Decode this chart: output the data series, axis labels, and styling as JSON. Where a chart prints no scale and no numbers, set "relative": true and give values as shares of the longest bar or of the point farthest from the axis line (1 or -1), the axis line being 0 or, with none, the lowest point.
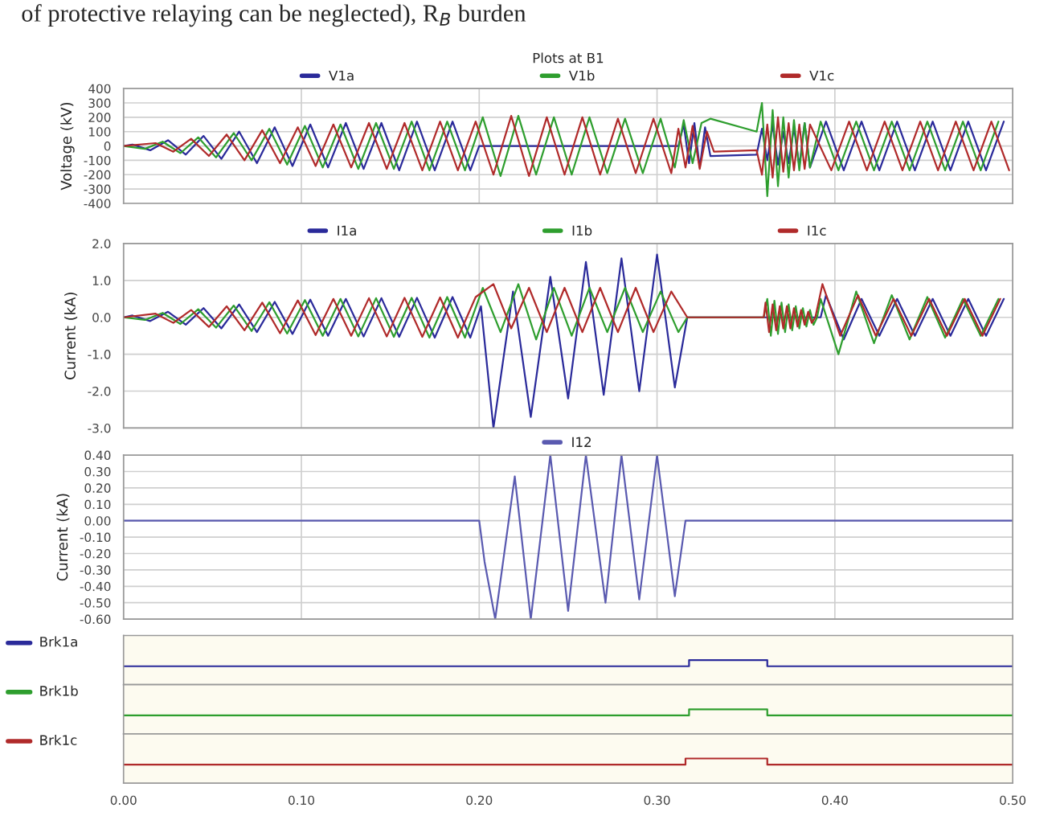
{
  "chart_data": [
    {
      "type": "line",
      "title": "Plots at B1",
      "ylabel": "Voltage (kV)",
      "annotations": [
        "of protective relaying can be neglected), R$_{B}$ burden"
      ],
      "xlim": [
        0,
        0.5
      ],
      "xticks": [
        {
          "value": 0,
          "label": null
        },
        {
          "value": 0.1,
          "label": null
        },
        {
          "value": 0.2,
          "label": null
        },
        {
          "value": 0.3,
          "label": null
        },
        {
          "value": 0.4,
          "label": null
        },
        {
          "value": 0.5,
          "label": null
        }
      ],
      "ylim": [
        -400,
        400
      ],
      "yticks": [
        -400,
        -300,
        -200,
        -100,
        0,
        100,
        200,
        300,
        400
      ],
      "tick_labels": "y",
      "grid": true,
      "legend": "top",
      "series": [
        {
          "name": "V1a",
          "color": "#2a2a9a",
          "x": [
            0,
            0.005,
            0.015,
            0.025,
            0.035,
            0.045,
            0.055,
            0.065,
            0.075,
            0.085,
            0.095,
            0.105,
            0.115,
            0.125,
            0.135,
            0.145,
            0.155,
            0.165,
            0.175,
            0.185,
            0.195,
            0.2,
            0.312,
            0.315,
            0.318,
            0.321,
            0.324,
            0.327,
            0.33,
            0.356,
            0.359,
            0.362,
            0.365,
            0.368,
            0.371,
            0.374,
            0.377,
            0.38,
            0.383,
            0.386,
            0.395,
            0.405,
            0.415,
            0.425,
            0.435,
            0.445,
            0.455,
            0.465,
            0.475,
            0.485,
            0.495
          ],
          "values": [
            0,
            10,
            -30,
            40,
            -60,
            70,
            -90,
            100,
            -120,
            130,
            -140,
            150,
            -150,
            160,
            -160,
            160,
            -170,
            170,
            -170,
            170,
            -170,
            0,
            0,
            150,
            -120,
            160,
            -150,
            130,
            -70,
            -60,
            120,
            -100,
            150,
            -130,
            100,
            -120,
            130,
            -140,
            160,
            -150,
            170,
            -170,
            170,
            -170,
            170,
            -170,
            170,
            -170,
            170,
            -170,
            170
          ]
        },
        {
          "name": "V1b",
          "color": "#2e9e2e",
          "x": [
            0,
            0.012,
            0.022,
            0.032,
            0.042,
            0.052,
            0.062,
            0.072,
            0.082,
            0.092,
            0.102,
            0.112,
            0.122,
            0.132,
            0.142,
            0.152,
            0.162,
            0.172,
            0.182,
            0.192,
            0.202,
            0.212,
            0.222,
            0.232,
            0.242,
            0.252,
            0.262,
            0.272,
            0.282,
            0.292,
            0.302,
            0.31,
            0.315,
            0.32,
            0.325,
            0.33,
            0.356,
            0.359,
            0.362,
            0.365,
            0.368,
            0.371,
            0.374,
            0.377,
            0.38,
            0.383,
            0.386,
            0.392,
            0.402,
            0.412,
            0.422,
            0.432,
            0.442,
            0.452,
            0.462,
            0.472,
            0.482,
            0.492
          ],
          "values": [
            0,
            -20,
            30,
            -50,
            60,
            -80,
            90,
            -100,
            120,
            -130,
            140,
            -150,
            150,
            -160,
            160,
            -160,
            170,
            -170,
            170,
            -170,
            200,
            -210,
            210,
            -200,
            200,
            -200,
            200,
            -190,
            190,
            -190,
            190,
            -150,
            180,
            -120,
            160,
            190,
            100,
            300,
            -350,
            250,
            -280,
            200,
            -220,
            180,
            -170,
            160,
            -150,
            170,
            -170,
            170,
            -170,
            170,
            -170,
            170,
            -170,
            170,
            -170,
            170
          ]
        },
        {
          "name": "V1c",
          "color": "#b02a2a",
          "x": [
            0,
            0.018,
            0.028,
            0.038,
            0.048,
            0.058,
            0.068,
            0.078,
            0.088,
            0.098,
            0.108,
            0.118,
            0.128,
            0.138,
            0.148,
            0.158,
            0.168,
            0.178,
            0.188,
            0.198,
            0.208,
            0.218,
            0.228,
            0.238,
            0.248,
            0.258,
            0.268,
            0.278,
            0.288,
            0.298,
            0.308,
            0.312,
            0.316,
            0.32,
            0.324,
            0.328,
            0.332,
            0.356,
            0.359,
            0.362,
            0.365,
            0.368,
            0.371,
            0.374,
            0.377,
            0.38,
            0.383,
            0.386,
            0.398,
            0.408,
            0.418,
            0.428,
            0.438,
            0.448,
            0.458,
            0.468,
            0.478,
            0.488,
            0.498
          ],
          "values": [
            0,
            20,
            -40,
            50,
            -70,
            80,
            -100,
            110,
            -120,
            130,
            -140,
            150,
            -150,
            160,
            -160,
            160,
            -170,
            170,
            -170,
            170,
            -200,
            210,
            -210,
            200,
            -200,
            200,
            -200,
            190,
            -190,
            190,
            -190,
            120,
            -150,
            140,
            -160,
            100,
            -40,
            -30,
            -200,
            150,
            -220,
            200,
            -180,
            160,
            -170,
            150,
            -160,
            150,
            -170,
            170,
            -170,
            170,
            -170,
            170,
            -170,
            170,
            -170,
            170,
            -170
          ]
        }
      ]
    },
    {
      "type": "line",
      "ylabel": "Current (kA)",
      "xlim": [
        0,
        0.5
      ],
      "xticks": [
        {
          "value": 0,
          "label": null
        },
        {
          "value": 0.1,
          "label": null
        },
        {
          "value": 0.2,
          "label": null
        },
        {
          "value": 0.3,
          "label": null
        },
        {
          "value": 0.4,
          "label": null
        },
        {
          "value": 0.5,
          "label": null
        }
      ],
      "ylim": [
        -3,
        2
      ],
      "yticks": [
        {
          "value": -3,
          "label": "-3.0"
        },
        {
          "value": -2,
          "label": "-2.0"
        },
        {
          "value": -1,
          "label": "-1.0"
        },
        {
          "value": 0,
          "label": "0.0"
        },
        {
          "value": 1,
          "label": "1.0"
        },
        {
          "value": 2,
          "label": "2.0"
        }
      ],
      "tick_labels": "y",
      "grid": true,
      "legend": "top",
      "series": [
        {
          "name": "I1a",
          "color": "#2a2a9a",
          "x": [
            0,
            0.005,
            0.015,
            0.025,
            0.035,
            0.045,
            0.055,
            0.065,
            0.075,
            0.085,
            0.095,
            0.105,
            0.115,
            0.125,
            0.135,
            0.145,
            0.155,
            0.165,
            0.175,
            0.185,
            0.195,
            0.201,
            0.208,
            0.219,
            0.229,
            0.24,
            0.25,
            0.26,
            0.27,
            0.28,
            0.29,
            0.3,
            0.31,
            0.317,
            0.392,
            0.395,
            0.405,
            0.415,
            0.425,
            0.435,
            0.445,
            0.455,
            0.465,
            0.475,
            0.485,
            0.495
          ],
          "values": [
            0,
            0.05,
            -0.1,
            0.15,
            -0.2,
            0.25,
            -0.3,
            0.35,
            -0.4,
            0.42,
            -0.45,
            0.48,
            -0.5,
            0.5,
            -0.52,
            0.52,
            -0.53,
            0.53,
            -0.55,
            0.55,
            -0.55,
            0.3,
            -3.0,
            0.7,
            -2.7,
            1.1,
            -2.2,
            1.5,
            -2.1,
            1.6,
            -2.0,
            1.7,
            -1.9,
            0,
            0,
            0.6,
            -0.6,
            0.5,
            -0.5,
            0.5,
            -0.5,
            0.5,
            -0.5,
            0.5,
            -0.5,
            0.5
          ]
        },
        {
          "name": "I1b",
          "color": "#2e9e2e",
          "x": [
            0,
            0.012,
            0.022,
            0.032,
            0.042,
            0.052,
            0.062,
            0.072,
            0.082,
            0.092,
            0.102,
            0.112,
            0.122,
            0.132,
            0.142,
            0.152,
            0.162,
            0.172,
            0.182,
            0.192,
            0.202,
            0.212,
            0.222,
            0.232,
            0.242,
            0.252,
            0.262,
            0.272,
            0.282,
            0.292,
            0.302,
            0.312,
            0.317,
            0.36,
            0.362,
            0.364,
            0.366,
            0.368,
            0.37,
            0.372,
            0.374,
            0.376,
            0.378,
            0.38,
            0.382,
            0.384,
            0.386,
            0.388,
            0.39,
            0.392,
            0.402,
            0.412,
            0.422,
            0.432,
            0.442,
            0.452,
            0.462,
            0.472,
            0.482,
            0.492
          ],
          "values": [
            0,
            -0.07,
            0.12,
            -0.18,
            0.22,
            -0.28,
            0.32,
            -0.37,
            0.41,
            -0.44,
            0.47,
            -0.5,
            0.5,
            -0.52,
            0.52,
            -0.53,
            0.53,
            -0.55,
            0.55,
            -0.55,
            0.8,
            -0.4,
            0.9,
            -0.6,
            0.8,
            -0.5,
            0.8,
            -0.4,
            0.8,
            -0.4,
            0.7,
            -0.4,
            0,
            0,
            0.5,
            -0.5,
            0.45,
            -0.45,
            0.4,
            -0.4,
            0.35,
            -0.35,
            0.3,
            -0.3,
            0.25,
            -0.25,
            0.2,
            -0.2,
            0,
            0.5,
            -1.0,
            0.7,
            -0.7,
            0.6,
            -0.6,
            0.55,
            -0.55,
            0.5,
            -0.5,
            0.5
          ]
        },
        {
          "name": "I1c",
          "color": "#b02a2a",
          "x": [
            0,
            0.018,
            0.028,
            0.038,
            0.048,
            0.058,
            0.068,
            0.078,
            0.088,
            0.098,
            0.108,
            0.118,
            0.128,
            0.138,
            0.148,
            0.158,
            0.168,
            0.178,
            0.188,
            0.198,
            0.208,
            0.218,
            0.228,
            0.238,
            0.248,
            0.258,
            0.268,
            0.278,
            0.288,
            0.298,
            0.308,
            0.317,
            0.36,
            0.361,
            0.363,
            0.365,
            0.367,
            0.369,
            0.371,
            0.373,
            0.375,
            0.377,
            0.379,
            0.381,
            0.383,
            0.385,
            0.387,
            0.389,
            0.393,
            0.403,
            0.413,
            0.423,
            0.433,
            0.443,
            0.453,
            0.463,
            0.473,
            0.483,
            0.493
          ],
          "values": [
            0,
            0.1,
            -0.15,
            0.2,
            -0.26,
            0.3,
            -0.35,
            0.4,
            -0.43,
            0.46,
            -0.48,
            0.5,
            -0.5,
            0.52,
            -0.52,
            0.53,
            -0.53,
            0.54,
            -0.55,
            0.55,
            0.9,
            -0.3,
            0.8,
            -0.4,
            0.8,
            -0.4,
            0.8,
            -0.4,
            0.8,
            -0.4,
            0.7,
            0,
            0,
            0.4,
            -0.4,
            0.35,
            -0.35,
            0.3,
            -0.3,
            0.3,
            -0.3,
            0.25,
            -0.25,
            0.2,
            -0.2,
            0.15,
            -0.15,
            0,
            0.9,
            -0.5,
            0.6,
            -0.5,
            0.5,
            -0.5,
            0.5,
            -0.5,
            0.5,
            -0.5,
            0.5
          ]
        }
      ]
    },
    {
      "type": "line",
      "ylabel": "Current (kA)",
      "xlim": [
        0,
        0.5
      ],
      "xticks": [
        {
          "value": 0,
          "label": null
        },
        {
          "value": 0.1,
          "label": null
        },
        {
          "value": 0.2,
          "label": null
        },
        {
          "value": 0.3,
          "label": null
        },
        {
          "value": 0.4,
          "label": null
        },
        {
          "value": 0.5,
          "label": null
        }
      ],
      "ylim": [
        -0.6,
        0.4
      ],
      "yticks": [
        {
          "value": -0.6,
          "label": "-0.60"
        },
        {
          "value": -0.5,
          "label": "-0.50"
        },
        {
          "value": -0.4,
          "label": "-0.40"
        },
        {
          "value": -0.3,
          "label": "-0.30"
        },
        {
          "value": -0.2,
          "label": "-0.20"
        },
        {
          "value": -0.1,
          "label": "-0.10"
        },
        {
          "value": 0,
          "label": "0.00"
        },
        {
          "value": 0.1,
          "label": "0.10"
        },
        {
          "value": 0.2,
          "label": "0.20"
        },
        {
          "value": 0.3,
          "label": "0.30"
        },
        {
          "value": 0.4,
          "label": "0.40"
        }
      ],
      "tick_labels": "y",
      "grid": true,
      "legend": "top",
      "series": [
        {
          "name": "I12",
          "color": "#5a5ab0",
          "x": [
            0,
            0.2,
            0.203,
            0.209,
            0.22,
            0.229,
            0.24,
            0.25,
            0.26,
            0.271,
            0.28,
            0.29,
            0.3,
            0.31,
            0.316,
            0.5
          ],
          "values": [
            0,
            0,
            -0.25,
            -0.6,
            0.27,
            -0.6,
            0.4,
            -0.55,
            0.4,
            -0.5,
            0.4,
            -0.48,
            0.4,
            -0.46,
            0,
            0
          ]
        }
      ]
    },
    {
      "type": "step",
      "relative": true,
      "xlim": [
        0,
        0.5
      ],
      "tick_labels": false,
      "legend": "left",
      "series": [
        {
          "name": "Brk1a",
          "color": "#2a2a9a",
          "x": [
            0,
            0.318,
            0.362,
            0.5
          ],
          "values": [
            0,
            1,
            0,
            0
          ]
        }
      ]
    },
    {
      "type": "step",
      "relative": true,
      "xlim": [
        0,
        0.5
      ],
      "tick_labels": false,
      "legend": "left",
      "series": [
        {
          "name": "Brk1b",
          "color": "#2e9e2e",
          "x": [
            0,
            0.318,
            0.362,
            0.5
          ],
          "values": [
            0,
            1,
            0,
            0
          ]
        }
      ]
    },
    {
      "type": "step",
      "relative": true,
      "xlim": [
        0,
        0.5
      ],
      "xticks": [
        {
          "value": 0,
          "label": "0.00"
        },
        {
          "value": 0.1,
          "label": "0.10"
        },
        {
          "value": 0.2,
          "label": "0.20"
        },
        {
          "value": 0.3,
          "label": "0.30"
        },
        {
          "value": 0.4,
          "label": "0.40"
        },
        {
          "value": 0.5,
          "label": "0.50"
        }
      ],
      "tick_labels": "x",
      "legend": "left",
      "series": [
        {
          "name": "Brk1c",
          "color": "#b02a2a",
          "x": [
            0,
            0.316,
            0.362,
            0.5
          ],
          "values": [
            0,
            1,
            0,
            0
          ]
        }
      ]
    }
  ]
}
